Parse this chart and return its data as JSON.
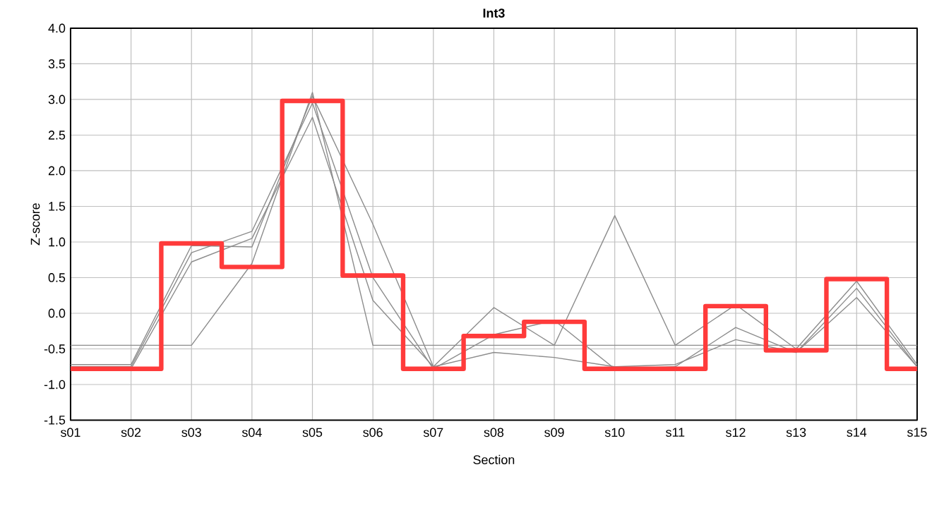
{
  "chart_data": {
    "type": "line",
    "title": "Int3",
    "xlabel": "Section",
    "ylabel": "Z-score",
    "categories": [
      "s01",
      "s02",
      "s03",
      "s04",
      "s05",
      "s06",
      "s07",
      "s08",
      "s09",
      "s10",
      "s11",
      "s12",
      "s13",
      "s14",
      "s15"
    ],
    "ylim": [
      -1.5,
      4
    ],
    "yticks": [
      {
        "value": -1.5,
        "label": "-1.5"
      },
      {
        "value": -1,
        "label": "-1.0"
      },
      {
        "value": -0.5,
        "label": "-0.5"
      },
      {
        "value": 0,
        "label": "0.0"
      },
      {
        "value": 0.5,
        "label": "0.5"
      },
      {
        "value": 1,
        "label": "1.0"
      },
      {
        "value": 1.5,
        "label": "1.5"
      },
      {
        "value": 2,
        "label": "2.0"
      },
      {
        "value": 2.5,
        "label": "2.5"
      },
      {
        "value": 3,
        "label": "3.0"
      },
      {
        "value": 3.5,
        "label": "3.5"
      },
      {
        "value": 4,
        "label": "4.0"
      }
    ],
    "grid": true,
    "series": [
      {
        "color": "#8c8c8c",
        "values": [
          -0.45,
          -0.45,
          -0.45,
          0.7,
          3.1,
          -0.45,
          -0.45,
          -0.45,
          -0.45,
          -0.45,
          -0.45,
          -0.45,
          -0.45,
          -0.45,
          -0.45
        ]
      },
      {
        "color": "#8c8c8c",
        "values": [
          -0.72,
          -0.72,
          0.95,
          0.93,
          3.05,
          1.25,
          -0.75,
          0.08,
          -0.45,
          1.37,
          -0.45,
          0.12,
          -0.5,
          0.45,
          -0.72
        ]
      },
      {
        "color": "#8c8c8c",
        "values": [
          -0.75,
          -0.75,
          0.85,
          1.15,
          2.95,
          0.5,
          -0.78,
          -0.3,
          -0.1,
          -0.78,
          -0.75,
          -0.2,
          -0.55,
          0.35,
          -0.75
        ]
      },
      {
        "color": "#8c8c8c",
        "values": [
          -0.78,
          -0.78,
          0.72,
          1.05,
          2.75,
          0.18,
          -0.75,
          -0.55,
          -0.62,
          -0.75,
          -0.72,
          -0.37,
          -0.55,
          0.22,
          -0.75
        ]
      },
      {
        "type": "step",
        "color": "#ff3b3b",
        "values": [
          -0.78,
          -0.78,
          0.98,
          0.65,
          2.98,
          0.53,
          -0.78,
          -0.32,
          -0.12,
          -0.78,
          -0.78,
          0.1,
          -0.52,
          0.48,
          -0.78
        ]
      }
    ]
  }
}
